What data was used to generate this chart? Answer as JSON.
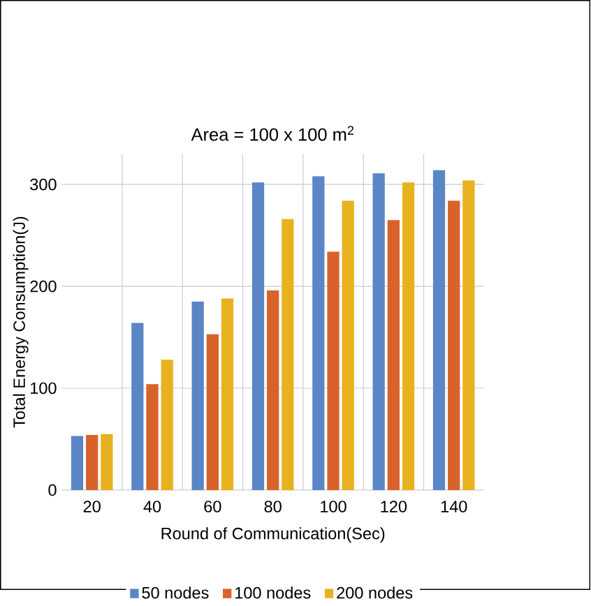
{
  "chart_data": {
    "type": "bar",
    "title": "Area = 100 x 100 m$^{2}$",
    "xlabel": "Round of Communication(Sec)",
    "ylabel": "Total Energy Consumption(J)",
    "categories": [
      "20",
      "40",
      "60",
      "80",
      "100",
      "120",
      "140"
    ],
    "series": [
      {
        "name": "50 nodes",
        "color": "#5b86c6",
        "values": [
          53,
          164,
          185,
          302,
          308,
          311,
          314
        ]
      },
      {
        "name": "100 nodes",
        "color": "#d9622b",
        "values": [
          54,
          104,
          153,
          196,
          234,
          265,
          284
        ]
      },
      {
        "name": "200 nodes",
        "color": "#e8b21f",
        "values": [
          55,
          128,
          188,
          266,
          284,
          302,
          304
        ]
      }
    ],
    "ylim": [
      0,
      330
    ],
    "yticks": [
      0,
      100,
      200,
      300
    ],
    "grid": true,
    "legend": "bottom"
  }
}
